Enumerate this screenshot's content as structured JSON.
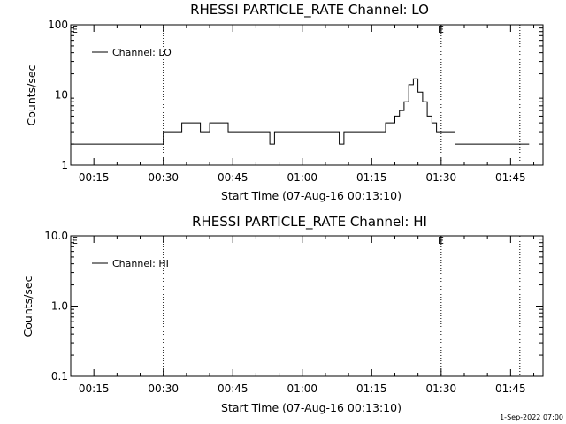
{
  "chart_data": [
    {
      "type": "line",
      "title": "RHESSI PARTICLE_RATE Channel: LO",
      "xlabel": "Start Time (07-Aug-16 00:13:10)",
      "ylabel": "Counts/sec",
      "y_scale": "log",
      "ylim": [
        1,
        100
      ],
      "y_ticks": [
        "1",
        "10",
        "100"
      ],
      "xlim": [
        "00:10",
        "01:52"
      ],
      "x_ticks": [
        "00:15",
        "00:30",
        "00:45",
        "01:00",
        "01:15",
        "01:30",
        "01:45"
      ],
      "legend": "top-left",
      "series": [
        {
          "name": "Channel: LO",
          "x": [
            "00:10",
            "00:11",
            "00:12",
            "00:13",
            "00:14",
            "00:15",
            "00:16",
            "00:17",
            "00:18",
            "00:19",
            "00:20",
            "00:21",
            "00:22",
            "00:23",
            "00:24",
            "00:25",
            "00:26",
            "00:27",
            "00:28",
            "00:29",
            "00:30",
            "00:31",
            "00:32",
            "00:33",
            "00:34",
            "00:35",
            "00:36",
            "00:37",
            "00:38",
            "00:39",
            "00:40",
            "00:41",
            "00:42",
            "00:43",
            "00:44",
            "00:45",
            "00:46",
            "00:47",
            "00:48",
            "00:49",
            "00:50",
            "00:51",
            "00:52",
            "00:53",
            "00:54",
            "00:55",
            "00:56",
            "00:57",
            "00:58",
            "00:59",
            "01:00",
            "01:01",
            "01:02",
            "01:03",
            "01:04",
            "01:05",
            "01:06",
            "01:07",
            "01:08",
            "01:09",
            "01:10",
            "01:11",
            "01:12",
            "01:13",
            "01:14",
            "01:15",
            "01:16",
            "01:17",
            "01:18",
            "01:19",
            "01:20",
            "01:21",
            "01:22",
            "01:23",
            "01:24",
            "01:25",
            "01:26",
            "01:27",
            "01:28",
            "01:29",
            "01:30",
            "01:31",
            "01:32",
            "01:33",
            "01:34",
            "01:35",
            "01:36",
            "01:37",
            "01:38",
            "01:39",
            "01:40",
            "01:41",
            "01:42",
            "01:43",
            "01:44",
            "01:45",
            "01:46",
            "01:47",
            "01:48"
          ],
          "values": [
            2,
            2,
            2,
            2,
            2,
            2,
            2,
            2,
            2,
            2,
            2,
            2,
            2,
            2,
            2,
            2,
            2,
            2,
            2,
            2,
            3,
            3,
            3,
            3,
            4,
            4,
            4,
            4,
            3,
            3,
            4,
            4,
            4,
            4,
            3,
            3,
            3,
            3,
            3,
            3,
            3,
            3,
            3,
            2,
            3,
            3,
            3,
            3,
            3,
            3,
            3,
            3,
            3,
            3,
            3,
            3,
            3,
            3,
            2,
            3,
            3,
            3,
            3,
            3,
            3,
            3,
            3,
            3,
            4,
            4,
            5,
            6,
            8,
            14,
            17,
            11,
            8,
            5,
            4,
            3,
            3,
            3,
            3,
            2,
            2,
            2,
            2,
            2,
            2,
            2,
            2,
            2,
            2,
            2,
            2,
            2,
            2,
            2,
            2
          ]
        }
      ],
      "annotations": [
        "E",
        "E"
      ]
    },
    {
      "type": "line",
      "title": "RHESSI PARTICLE_RATE Channel: HI",
      "xlabel": "Start Time (07-Aug-16 00:13:10)",
      "ylabel": "Counts/sec",
      "y_scale": "log",
      "ylim": [
        0.1,
        10
      ],
      "y_ticks": [
        "0.1",
        "1.0",
        "10.0"
      ],
      "xlim": [
        "00:10",
        "01:52"
      ],
      "x_ticks": [
        "00:15",
        "00:30",
        "00:45",
        "01:00",
        "01:15",
        "01:30",
        "01:45"
      ],
      "legend": "top-left",
      "series": [
        {
          "name": "Channel: HI",
          "x": [],
          "values": []
        }
      ],
      "annotations": [
        "E",
        "E"
      ]
    }
  ],
  "footer": {
    "timestamp": "1-Sep-2022 07:00"
  }
}
